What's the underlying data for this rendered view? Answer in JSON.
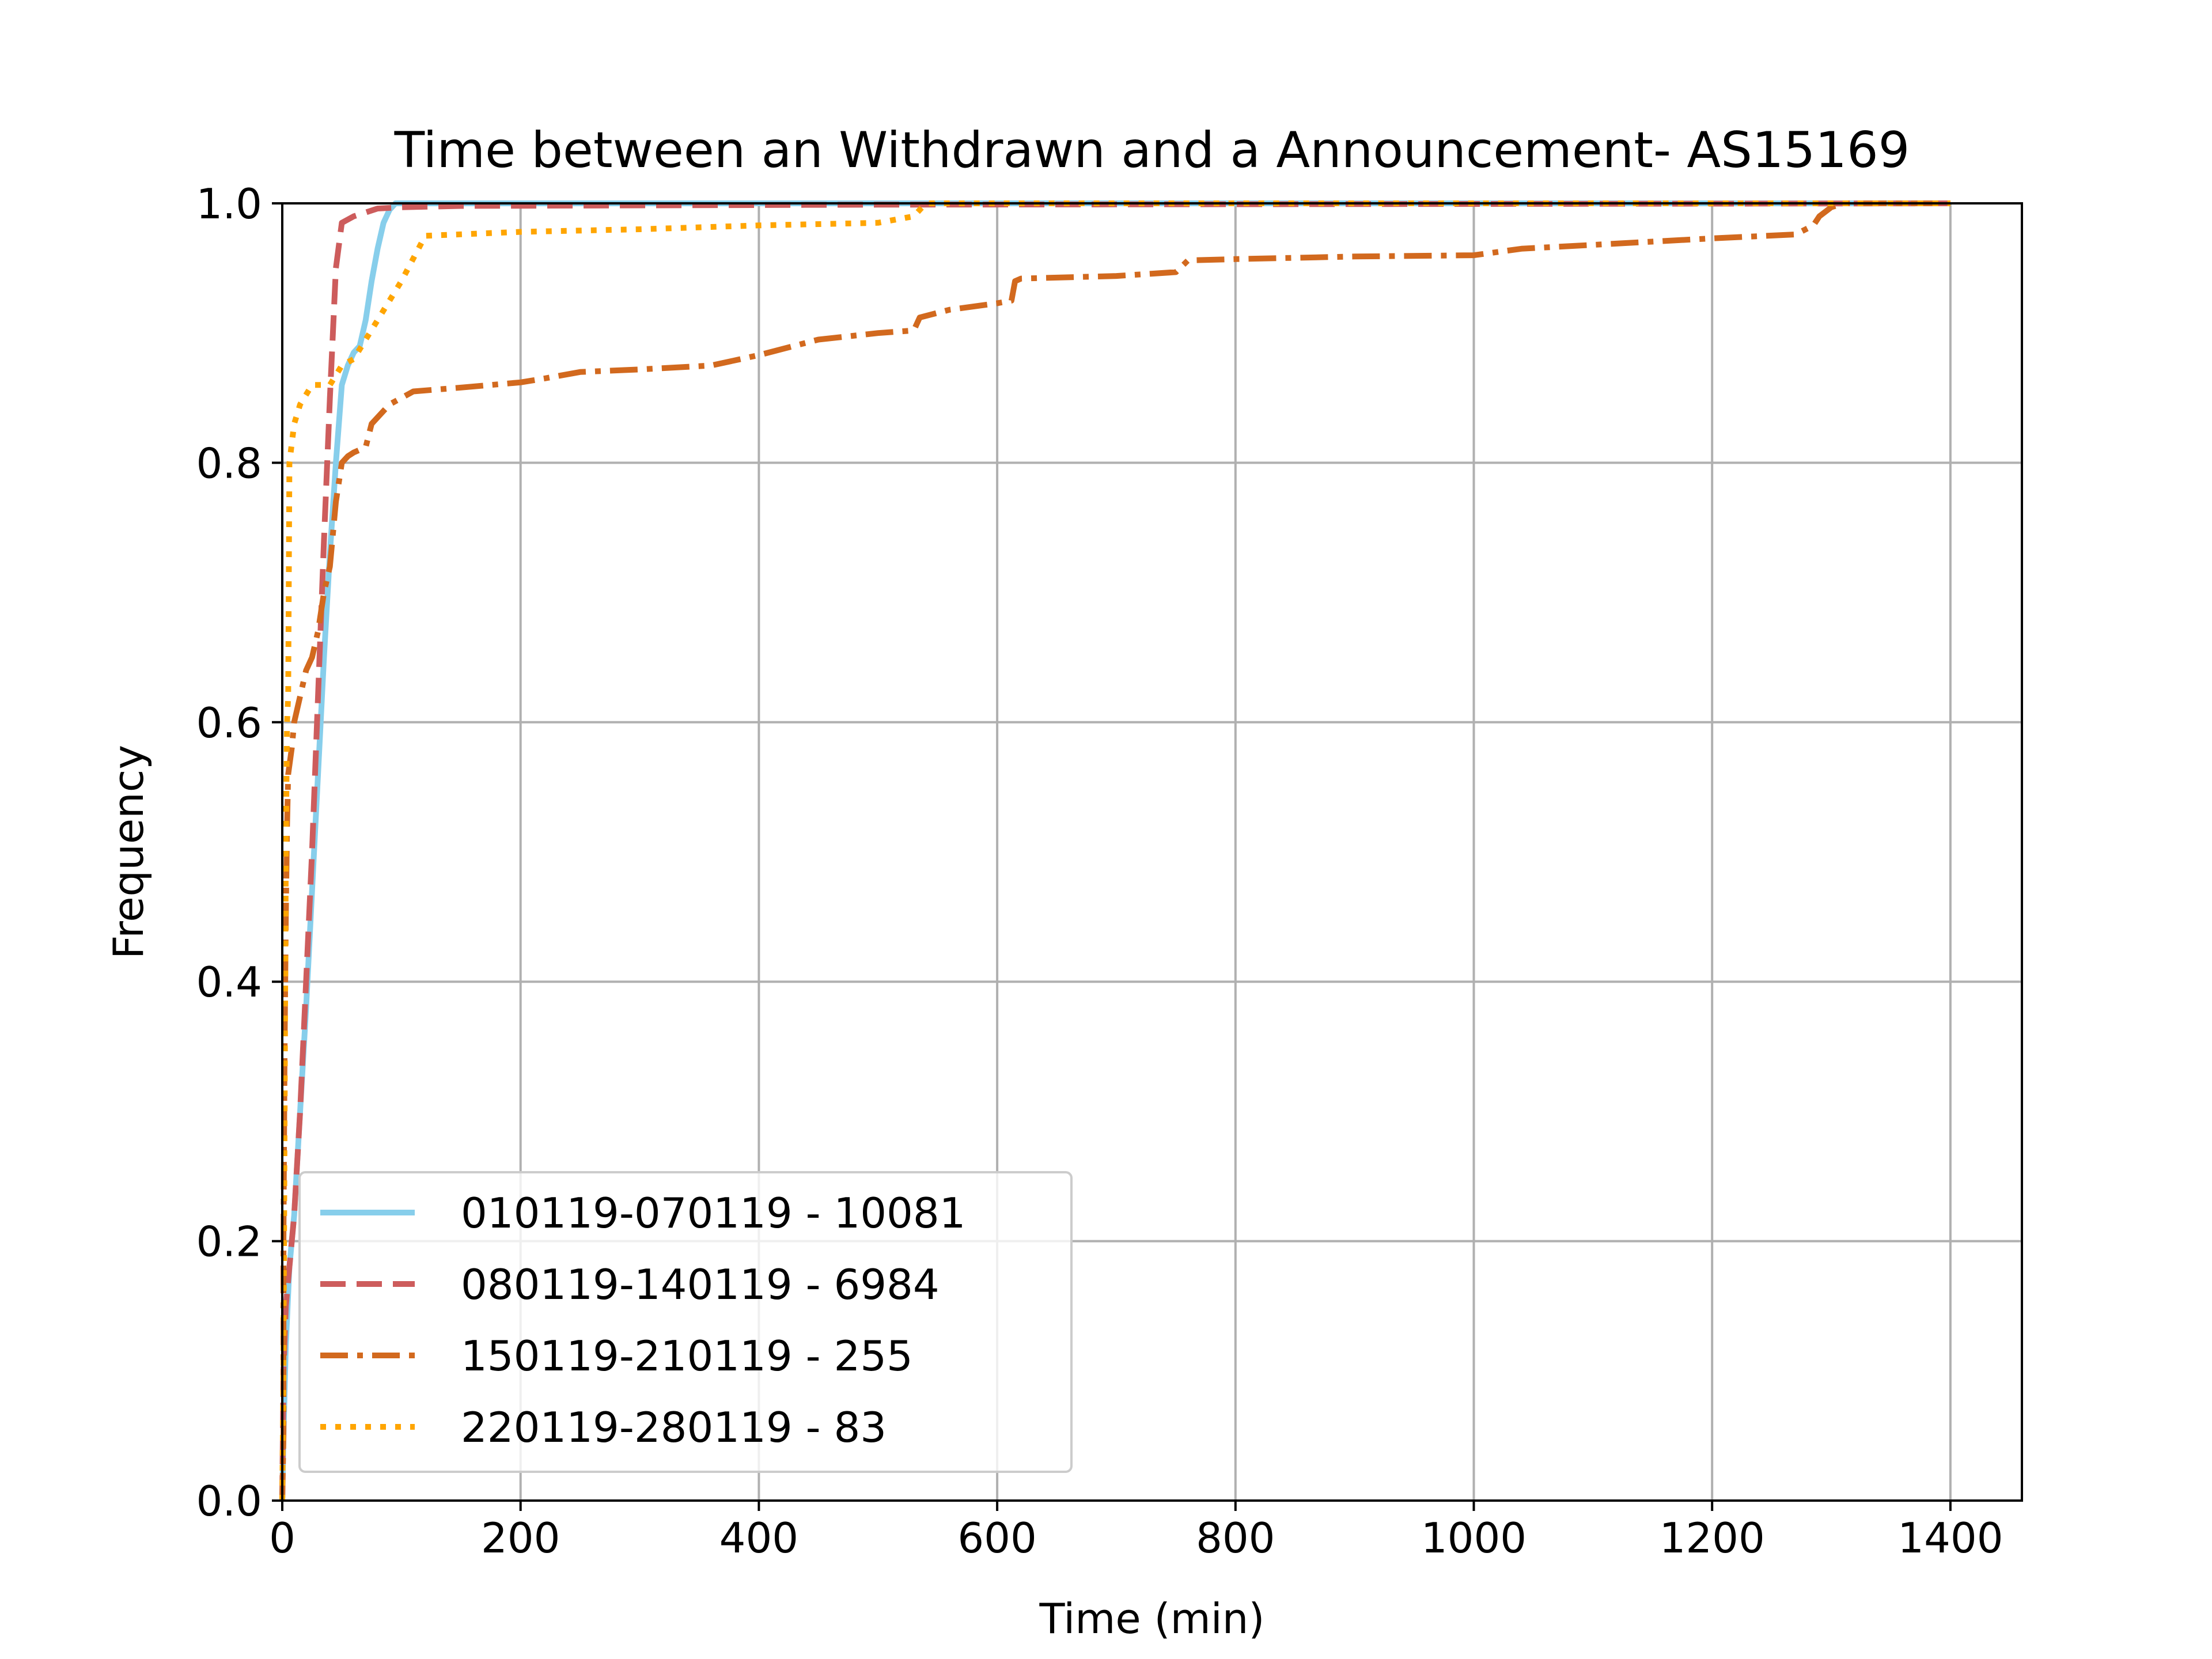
{
  "chart_data": {
    "type": "line",
    "title": "Time between an Withdrawn and a Announcement- AS15169",
    "xlabel": "Time (min)",
    "ylabel": "Frequency",
    "xlim": [
      0,
      1460
    ],
    "ylim": [
      0.0,
      1.0
    ],
    "xticks": [
      0,
      200,
      400,
      600,
      800,
      1000,
      1200,
      1400
    ],
    "xtick_labels": [
      "0",
      "200",
      "400",
      "600",
      "800",
      "1000",
      "1200",
      "1400"
    ],
    "yticks": [
      0.0,
      0.2,
      0.4,
      0.6,
      0.8,
      1.0
    ],
    "ytick_labels": [
      "0.0",
      "0.2",
      "0.4",
      "0.6",
      "0.8",
      "1.0"
    ],
    "grid": true,
    "legend_position": "lower-left",
    "series": [
      {
        "name": "010119-070119 - 10081",
        "color": "#87CEEB",
        "style": "solid",
        "points": [
          [
            0,
            0.0
          ],
          [
            1,
            0.05
          ],
          [
            3,
            0.12
          ],
          [
            6,
            0.18
          ],
          [
            10,
            0.22
          ],
          [
            15,
            0.3
          ],
          [
            20,
            0.38
          ],
          [
            25,
            0.47
          ],
          [
            30,
            0.56
          ],
          [
            35,
            0.65
          ],
          [
            40,
            0.73
          ],
          [
            45,
            0.8
          ],
          [
            50,
            0.86
          ],
          [
            55,
            0.875
          ],
          [
            60,
            0.885
          ],
          [
            65,
            0.89
          ],
          [
            70,
            0.91
          ],
          [
            75,
            0.94
          ],
          [
            80,
            0.965
          ],
          [
            85,
            0.985
          ],
          [
            90,
            0.995
          ],
          [
            95,
            1.0
          ],
          [
            1400,
            1.0
          ]
        ]
      },
      {
        "name": "080119-140119 - 6984",
        "color": "#CD5C5C",
        "style": "dashed",
        "points": [
          [
            0,
            0.0
          ],
          [
            1,
            0.1
          ],
          [
            3,
            0.15
          ],
          [
            6,
            0.18
          ],
          [
            10,
            0.22
          ],
          [
            15,
            0.3
          ],
          [
            20,
            0.4
          ],
          [
            25,
            0.5
          ],
          [
            30,
            0.62
          ],
          [
            35,
            0.74
          ],
          [
            40,
            0.85
          ],
          [
            45,
            0.95
          ],
          [
            50,
            0.985
          ],
          [
            60,
            0.99
          ],
          [
            70,
            0.993
          ],
          [
            80,
            0.996
          ],
          [
            100,
            0.997
          ],
          [
            150,
            0.998
          ],
          [
            500,
            0.999
          ],
          [
            1400,
            1.0
          ]
        ]
      },
      {
        "name": "150119-210119 - 255",
        "color": "#D2691E",
        "style": "dashdot",
        "points": [
          [
            0,
            0.0
          ],
          [
            1,
            0.05
          ],
          [
            1,
            0.2
          ],
          [
            2,
            0.35
          ],
          [
            3,
            0.45
          ],
          [
            4,
            0.52
          ],
          [
            5,
            0.56
          ],
          [
            8,
            0.58
          ],
          [
            10,
            0.6
          ],
          [
            15,
            0.62
          ],
          [
            20,
            0.64
          ],
          [
            25,
            0.65
          ],
          [
            30,
            0.67
          ],
          [
            35,
            0.7
          ],
          [
            40,
            0.72
          ],
          [
            45,
            0.77
          ],
          [
            50,
            0.8
          ],
          [
            55,
            0.805
          ],
          [
            60,
            0.808
          ],
          [
            70,
            0.812
          ],
          [
            75,
            0.83
          ],
          [
            90,
            0.845
          ],
          [
            110,
            0.855
          ],
          [
            150,
            0.858
          ],
          [
            200,
            0.862
          ],
          [
            220,
            0.865
          ],
          [
            250,
            0.87
          ],
          [
            300,
            0.872
          ],
          [
            360,
            0.875
          ],
          [
            400,
            0.883
          ],
          [
            450,
            0.895
          ],
          [
            500,
            0.9
          ],
          [
            530,
            0.902
          ],
          [
            535,
            0.912
          ],
          [
            560,
            0.918
          ],
          [
            600,
            0.923
          ],
          [
            612,
            0.925
          ],
          [
            615,
            0.94
          ],
          [
            620,
            0.942
          ],
          [
            700,
            0.944
          ],
          [
            750,
            0.947
          ],
          [
            760,
            0.956
          ],
          [
            800,
            0.957
          ],
          [
            900,
            0.959
          ],
          [
            1000,
            0.96
          ],
          [
            1040,
            0.965
          ],
          [
            1100,
            0.968
          ],
          [
            1200,
            0.973
          ],
          [
            1270,
            0.976
          ],
          [
            1285,
            0.983
          ],
          [
            1290,
            0.99
          ],
          [
            1300,
            0.997
          ],
          [
            1310,
            1.0
          ],
          [
            1400,
            1.0
          ]
        ]
      },
      {
        "name": "220119-280119 - 83",
        "color": "#FFA500",
        "style": "dotted",
        "points": [
          [
            0,
            0.0
          ],
          [
            1,
            0.1
          ],
          [
            2,
            0.3
          ],
          [
            3,
            0.5
          ],
          [
            4,
            0.6
          ],
          [
            5,
            0.62
          ],
          [
            6,
            0.8
          ],
          [
            10,
            0.83
          ],
          [
            15,
            0.845
          ],
          [
            25,
            0.86
          ],
          [
            40,
            0.86
          ],
          [
            50,
            0.875
          ],
          [
            60,
            0.88
          ],
          [
            80,
            0.91
          ],
          [
            100,
            0.94
          ],
          [
            120,
            0.975
          ],
          [
            200,
            0.978
          ],
          [
            300,
            0.98
          ],
          [
            400,
            0.983
          ],
          [
            500,
            0.985
          ],
          [
            530,
            0.99
          ],
          [
            540,
            1.0
          ],
          [
            1400,
            1.0
          ]
        ]
      }
    ]
  }
}
